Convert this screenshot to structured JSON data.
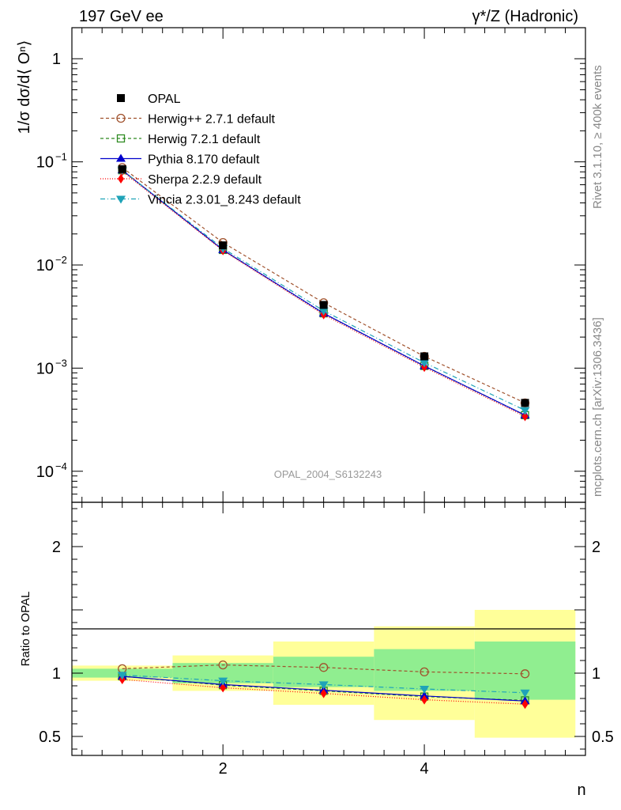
{
  "header": {
    "left": "197 GeV ee",
    "right": "γ*/Z (Hadronic)"
  },
  "side_labels": {
    "rivet": "Rivet 3.1.10, ≥ 400k events",
    "mcplots": "mcplots.cern.ch [arXiv:1306.3436]"
  },
  "watermark": "OPAL_2004_S6132243",
  "chart_data": [
    {
      "type": "line",
      "panel": "main",
      "yscale": "log",
      "ylabel": "1/σ dσ/d⟨ Oⁿ⟩",
      "xlabel": "n",
      "xlim": [
        0.5,
        5.6
      ],
      "ylim": [
        5e-05,
        2
      ],
      "y_tick_labels": [
        {
          "value": 1,
          "base": "1",
          "exp": ""
        },
        {
          "value": 0.1,
          "base": "10",
          "exp": "−1"
        },
        {
          "value": 0.01,
          "base": "10",
          "exp": "−2"
        },
        {
          "value": 0.001,
          "base": "10",
          "exp": "−3"
        },
        {
          "value": 0.0001,
          "base": "10",
          "exp": "−4"
        }
      ],
      "x": [
        1,
        2,
        3,
        4,
        5
      ],
      "series": [
        {
          "name": "OPAL",
          "color": "#000000",
          "marker": "square",
          "values": [
            0.085,
            0.0155,
            0.0041,
            0.0013,
            0.00046
          ]
        },
        {
          "name": "Herwig++ 2.7.1 default",
          "color": "#a0522d",
          "marker": "circle-open",
          "dash": "4,3",
          "values": [
            0.088,
            0.0165,
            0.0043,
            0.0013,
            0.00046
          ]
        },
        {
          "name": "Herwig 7.2.1 default",
          "color": "#2e8b22",
          "marker": "square-open",
          "dash": "4,3",
          "values": [
            0.083,
            0.014,
            0.0034,
            0.00105,
            0.00035
          ]
        },
        {
          "name": "Pythia 8.170 default",
          "color": "#0000cc",
          "marker": "triangle-up",
          "dash": "",
          "values": [
            0.083,
            0.014,
            0.0034,
            0.00105,
            0.00035
          ]
        },
        {
          "name": "Sherpa 2.2.9 default",
          "color": "#ff0000",
          "marker": "diamond",
          "dash": "1,2",
          "values": [
            0.081,
            0.0138,
            0.0033,
            0.00102,
            0.00034
          ]
        },
        {
          "name": "Vincia 2.3.01_8.243 default",
          "color": "#1fa3b8",
          "marker": "triangle-down",
          "dash": "6,3,1,3",
          "values": [
            0.083,
            0.0145,
            0.0036,
            0.00113,
            0.00039
          ]
        }
      ]
    },
    {
      "type": "line",
      "panel": "ratio",
      "ylabel": "Ratio to OPAL",
      "xlabel": "n",
      "xlim": [
        0.5,
        5.6
      ],
      "ylim": [
        0.35,
        2.35
      ],
      "y_tick_labels": [
        "0.5",
        "1",
        "2"
      ],
      "x_tick_labels": [
        "2",
        "4"
      ],
      "bands": {
        "edges": [
          0.5,
          1.5,
          2.5,
          3.5,
          4.5,
          5.5
        ],
        "inner": {
          "color": "#90ee90",
          "lo": [
            0.965,
            0.92,
            0.89,
            0.86,
            0.79
          ],
          "hi": [
            1.035,
            1.08,
            1.13,
            1.19,
            1.25
          ]
        },
        "outer": {
          "color": "#ffff99",
          "lo": [
            0.94,
            0.86,
            0.75,
            0.63,
            0.49
          ],
          "hi": [
            1.06,
            1.14,
            1.25,
            1.37,
            1.5
          ]
        }
      },
      "x": [
        1,
        2,
        3,
        4,
        5
      ],
      "series": [
        {
          "name": "Herwig++ 2.7.1 default",
          "values": [
            1.035,
            1.065,
            1.045,
            1.01,
            0.995
          ]
        },
        {
          "name": "Herwig 7.2.1 default",
          "values": [
            0.975,
            0.905,
            0.86,
            0.815,
            0.785
          ]
        },
        {
          "name": "Pythia 8.170 default",
          "values": [
            0.975,
            0.91,
            0.865,
            0.82,
            0.78
          ]
        },
        {
          "name": "Sherpa 2.2.9 default",
          "values": [
            0.95,
            0.885,
            0.84,
            0.79,
            0.755
          ]
        },
        {
          "name": "Vincia 2.3.01_8.243 default",
          "values": [
            0.985,
            0.94,
            0.91,
            0.875,
            0.845
          ]
        }
      ]
    }
  ]
}
